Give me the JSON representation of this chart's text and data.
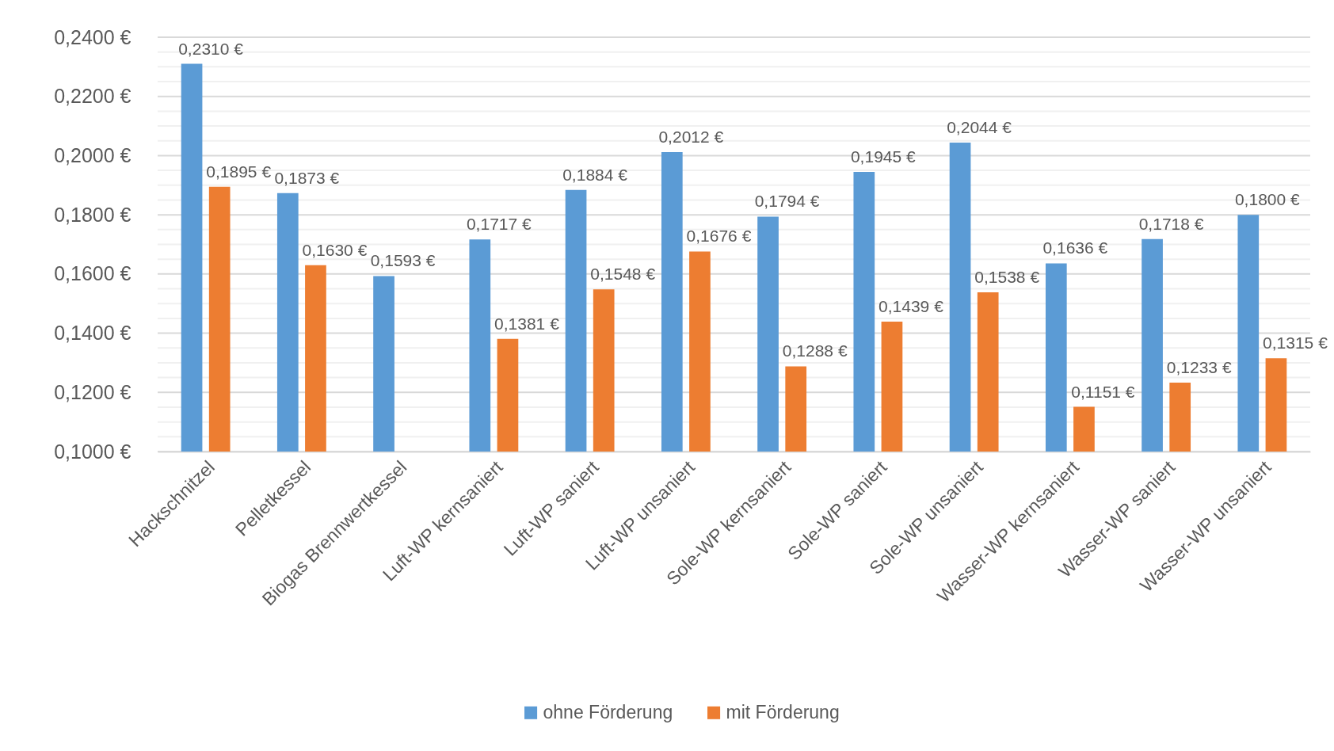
{
  "chart_data": {
    "type": "bar",
    "categories": [
      "Hackschnitzel",
      "Pelletkessel",
      "Biogas Brennwertkessel",
      "Luft-WP kernsaniert",
      "Luft-WP saniert",
      "Luft-WP unsaniert",
      "Sole-WP kernsaniert",
      "Sole-WP saniert",
      "Sole-WP unsaniert",
      "Wasser-WP kernsaniert",
      "Wasser-WP saniert",
      "Wasser-WP unsaniert"
    ],
    "series": [
      {
        "name": "ohne Förderung",
        "color": "#5b9bd5",
        "values": [
          0.231,
          0.1873,
          0.1593,
          0.1717,
          0.1884,
          0.2012,
          0.1794,
          0.1945,
          0.2044,
          0.1636,
          0.1718,
          0.18
        ],
        "value_labels": [
          "0,2310 €",
          "0,1873 €",
          "0,1593 €",
          "0,1717 €",
          "0,1884 €",
          "0,2012 €",
          "0,1794 €",
          "0,1945 €",
          "0,2044 €",
          "0,1636 €",
          "0,1718 €",
          "0,1800 €"
        ]
      },
      {
        "name": "mit Förderung",
        "color": "#ed7d31",
        "values": [
          0.1895,
          0.163,
          null,
          0.1381,
          0.1548,
          0.1676,
          0.1288,
          0.1439,
          0.1538,
          0.1151,
          0.1233,
          0.1315
        ],
        "value_labels": [
          "0,1895 €",
          "0,1630 €",
          null,
          "0,1381 €",
          "0,1548 €",
          "0,1676 €",
          "0,1288 €",
          "0,1439 €",
          "0,1538 €",
          "0,1151 €",
          "0,1233 €",
          "0,1315 €"
        ]
      }
    ],
    "ylim": [
      0.1,
      0.24
    ],
    "yticks": [
      {
        "value": 0.1,
        "label": "0,1000 €"
      },
      {
        "value": 0.105,
        "label": null
      },
      {
        "value": 0.11,
        "label": null
      },
      {
        "value": 0.115,
        "label": null
      },
      {
        "value": 0.12,
        "label": "0,1200 €"
      },
      {
        "value": 0.125,
        "label": null
      },
      {
        "value": 0.13,
        "label": null
      },
      {
        "value": 0.135,
        "label": null
      },
      {
        "value": 0.14,
        "label": "0,1400 €"
      },
      {
        "value": 0.145,
        "label": null
      },
      {
        "value": 0.15,
        "label": null
      },
      {
        "value": 0.155,
        "label": null
      },
      {
        "value": 0.16,
        "label": "0,1600 €"
      },
      {
        "value": 0.165,
        "label": null
      },
      {
        "value": 0.17,
        "label": null
      },
      {
        "value": 0.175,
        "label": null
      },
      {
        "value": 0.18,
        "label": "0,1800 €"
      },
      {
        "value": 0.185,
        "label": null
      },
      {
        "value": 0.19,
        "label": null
      },
      {
        "value": 0.195,
        "label": null
      },
      {
        "value": 0.2,
        "label": "0,2000 €"
      },
      {
        "value": 0.205,
        "label": null
      },
      {
        "value": 0.21,
        "label": null
      },
      {
        "value": 0.215,
        "label": null
      },
      {
        "value": 0.22,
        "label": "0,2200 €"
      },
      {
        "value": 0.225,
        "label": null
      },
      {
        "value": 0.23,
        "label": null
      },
      {
        "value": 0.235,
        "label": null
      },
      {
        "value": 0.24,
        "label": "0,2400 €"
      }
    ],
    "grid": "y",
    "legend": "bottom"
  }
}
